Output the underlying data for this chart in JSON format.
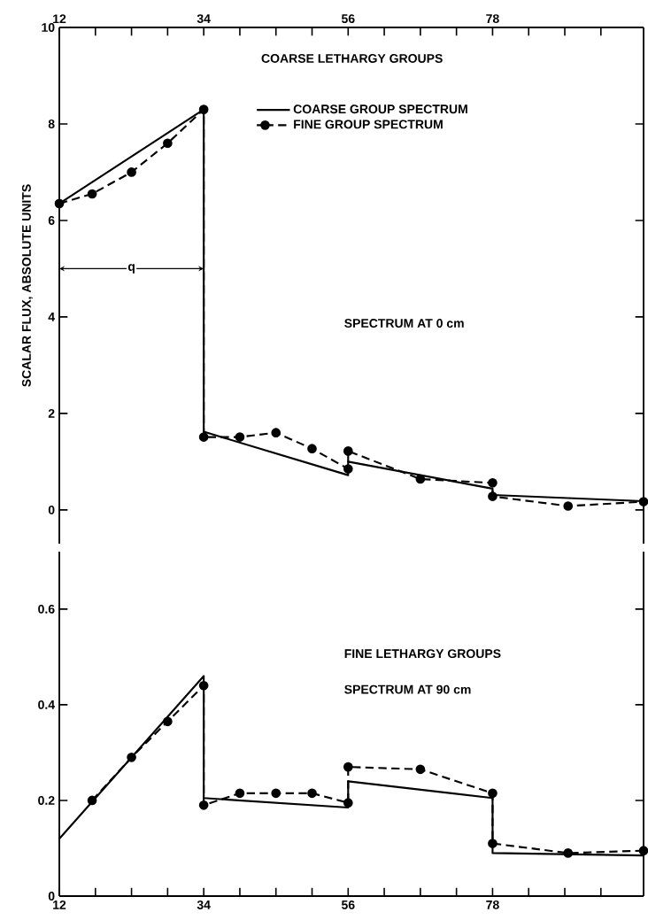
{
  "chart_data": [
    {
      "type": "line",
      "ylabel": "SCALAR FLUX, ABSOLUTE UNITS",
      "xlim": [
        12,
        101
      ],
      "ylim": [
        -0.7,
        10
      ],
      "xticks": [
        12,
        {
          "value": 17.5,
          "label": null
        },
        {
          "value": 23,
          "label": null
        },
        {
          "value": 28.5,
          "label": null
        },
        34,
        {
          "value": 39.5,
          "label": null
        },
        {
          "value": 45,
          "label": null
        },
        {
          "value": 50.5,
          "label": null
        },
        56,
        {
          "value": 61.5,
          "label": null
        },
        {
          "value": 67,
          "label": null
        },
        {
          "value": 72.5,
          "label": null
        },
        78,
        {
          "value": 83.5,
          "label": null
        },
        {
          "value": 89,
          "label": null
        },
        {
          "value": 94.5,
          "label": null
        }
      ],
      "yticks": [
        0,
        2,
        4,
        6,
        8,
        10
      ],
      "legend": "top right",
      "annotations": [
        "COARSE LETHARGY GROUPS",
        "SPECTRUM AT 0 cm",
        {
          "text": "q",
          "x": 23,
          "y": 5
        }
      ],
      "series": [
        {
          "name": "COARSE GROUP SPECTRUM",
          "color": "#000000",
          "line_style": "solid",
          "marker": "none",
          "x": [
            12,
            34,
            34,
            56,
            56,
            78,
            78,
            101
          ],
          "values": [
            6.35,
            8.3,
            1.62,
            0.72,
            1.0,
            0.44,
            0.31,
            0.18
          ]
        },
        {
          "name": "FINE GROUP SPECTRUM",
          "color": "#000000",
          "line_style": "dashed",
          "marker": "circle",
          "x": [
            12,
            17,
            23,
            28.5,
            34,
            34,
            39.5,
            45,
            50.5,
            56,
            56,
            67,
            78,
            78,
            89.5,
            101
          ],
          "values": [
            6.35,
            6.55,
            7.0,
            7.6,
            8.3,
            1.51,
            1.51,
            1.6,
            1.27,
            0.85,
            1.22,
            0.64,
            0.56,
            0.28,
            0.08,
            0.17
          ]
        }
      ]
    },
    {
      "type": "line",
      "xlim": [
        12,
        101
      ],
      "ylim": [
        0,
        0.72
      ],
      "xticks": [
        12,
        {
          "value": 17.5,
          "label": null
        },
        {
          "value": 23,
          "label": null
        },
        {
          "value": 28.5,
          "label": null
        },
        34,
        {
          "value": 39.5,
          "label": null
        },
        {
          "value": 45,
          "label": null
        },
        {
          "value": 50.5,
          "label": null
        },
        56,
        {
          "value": 61.5,
          "label": null
        },
        {
          "value": 67,
          "label": null
        },
        {
          "value": 72.5,
          "label": null
        },
        78,
        {
          "value": 83.5,
          "label": null
        },
        {
          "value": 89,
          "label": null
        },
        {
          "value": 94.5,
          "label": null
        }
      ],
      "yticks": [
        0,
        0.2,
        0.4,
        0.6
      ],
      "annotations": [
        "FINE LETHARGY GROUPS",
        "SPECTRUM AT 90 cm"
      ],
      "series": [
        {
          "color": "#000000",
          "line_style": "solid",
          "marker": "none",
          "x": [
            12,
            34,
            34,
            56,
            56,
            78,
            78,
            101
          ],
          "values": [
            0.12,
            0.46,
            0.205,
            0.185,
            0.24,
            0.205,
            0.09,
            0.085
          ]
        },
        {
          "color": "#000000",
          "line_style": "dashed",
          "marker": "circle",
          "x": [
            17,
            23,
            28.5,
            34,
            34,
            39.5,
            45,
            50.5,
            56,
            56,
            67,
            78,
            78,
            89.5,
            101
          ],
          "values": [
            0.2,
            0.29,
            0.365,
            0.44,
            0.19,
            0.215,
            0.215,
            0.215,
            0.195,
            0.27,
            0.265,
            0.215,
            0.11,
            0.09,
            0.095
          ]
        }
      ]
    }
  ]
}
